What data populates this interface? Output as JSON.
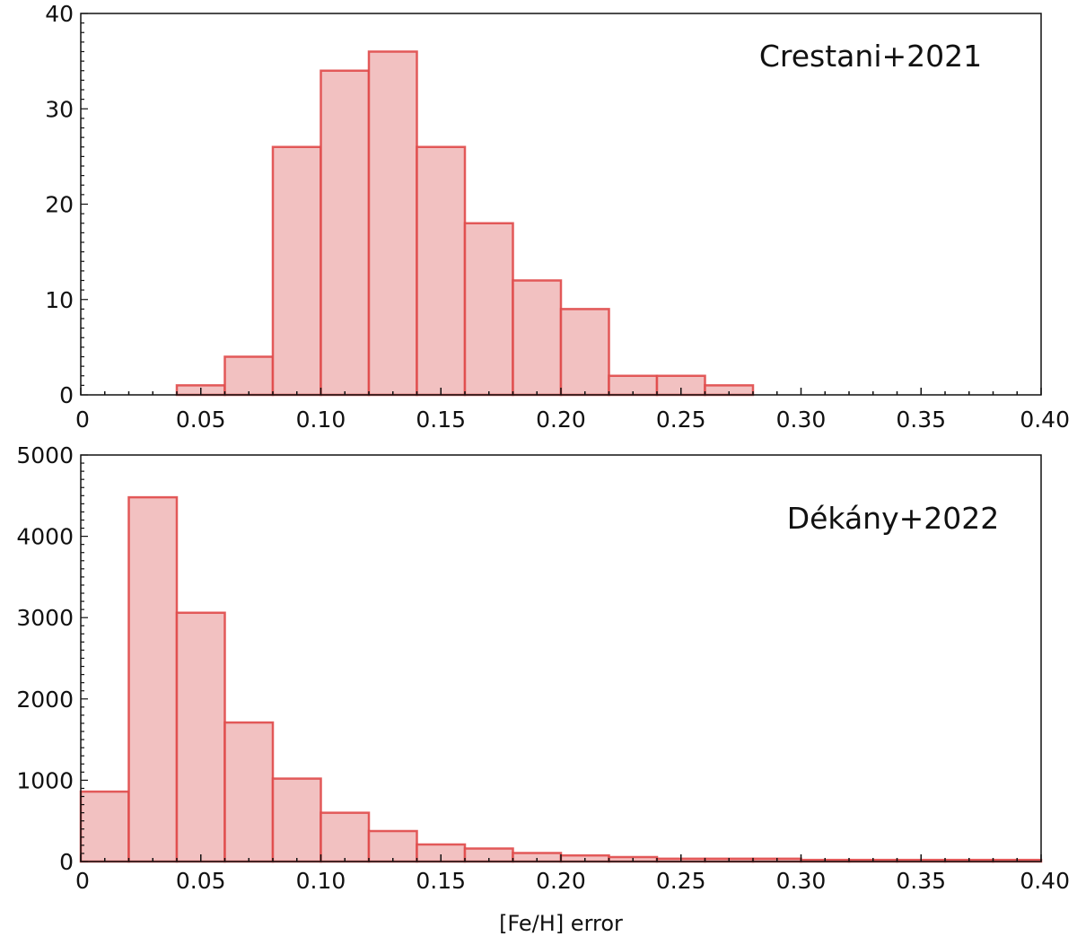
{
  "chart_data": [
    {
      "type": "bar",
      "subtype": "histogram",
      "title": "",
      "annotation": "Crestani+2021",
      "xlabel": "",
      "ylabel": "",
      "bin_edges": [
        0.04,
        0.06,
        0.08,
        0.1,
        0.12,
        0.14,
        0.16,
        0.18,
        0.2,
        0.22,
        0.24,
        0.26,
        0.28
      ],
      "values": [
        1,
        4,
        26,
        34,
        36,
        26,
        18,
        12,
        9,
        2,
        2,
        1
      ],
      "xlim": [
        0,
        0.4
      ],
      "ylim": [
        0,
        40
      ],
      "xticks": [
        "0",
        "0.05",
        "0.10",
        "0.15",
        "0.20",
        "0.25",
        "0.30",
        "0.35",
        "0.40"
      ],
      "yticks": [
        "0",
        "10",
        "20",
        "30",
        "40"
      ],
      "grid": false,
      "fill_color": "#f2c1c1",
      "edge_color": "#e04a4a"
    },
    {
      "type": "bar",
      "subtype": "histogram",
      "title": "",
      "annotation": "Dékány+2022",
      "xlabel": "[Fe/H] error",
      "ylabel": "",
      "bin_edges": [
        0,
        0.02,
        0.04,
        0.06,
        0.08,
        0.1,
        0.12,
        0.14,
        0.16,
        0.18,
        0.2,
        0.22,
        0.24,
        0.26,
        0.28,
        0.3,
        0.32,
        0.34,
        0.36,
        0.38,
        0.4
      ],
      "values": [
        860,
        4480,
        3060,
        1710,
        1020,
        600,
        375,
        210,
        160,
        105,
        75,
        55,
        35,
        35,
        35,
        20,
        20,
        20,
        20,
        20
      ],
      "xlim": [
        0,
        0.4
      ],
      "ylim": [
        0,
        5000
      ],
      "xticks": [
        "0",
        "0.05",
        "0.10",
        "0.15",
        "0.20",
        "0.25",
        "0.30",
        "0.35",
        "0.40"
      ],
      "yticks": [
        "0",
        "1000",
        "2000",
        "3000",
        "4000",
        "5000"
      ],
      "grid": false,
      "fill_color": "#f2c1c1",
      "edge_color": "#e04a4a"
    }
  ]
}
